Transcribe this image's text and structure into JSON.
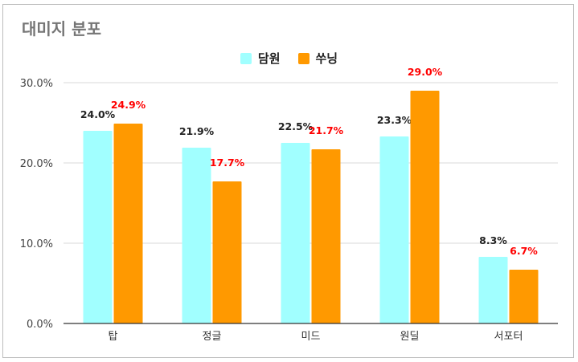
{
  "chart_data": {
    "type": "bar",
    "title": "대미지 분포",
    "categories": [
      "탑",
      "정글",
      "미드",
      "원딜",
      "서포터"
    ],
    "series": [
      {
        "name": "담원",
        "values": [
          24.0,
          21.9,
          22.5,
          23.3,
          8.3
        ],
        "labels": [
          "24.0%",
          "21.9%",
          "22.5%",
          "23.3%",
          "8.3%"
        ],
        "color": "#a1ffff",
        "label_color": "#222222"
      },
      {
        "name": "쑤닝",
        "values": [
          24.9,
          17.7,
          21.7,
          29.0,
          6.7
        ],
        "labels": [
          "24.9%",
          "17.7%",
          "21.7%",
          "29.0%",
          "6.7%"
        ],
        "color": "#ff9900",
        "label_color": "#ff0000"
      }
    ],
    "yticks": [
      "0.0%",
      "10.0%",
      "20.0%",
      "30.0%"
    ],
    "ylim": [
      0,
      30
    ],
    "legend": "top-center",
    "grid": true
  }
}
